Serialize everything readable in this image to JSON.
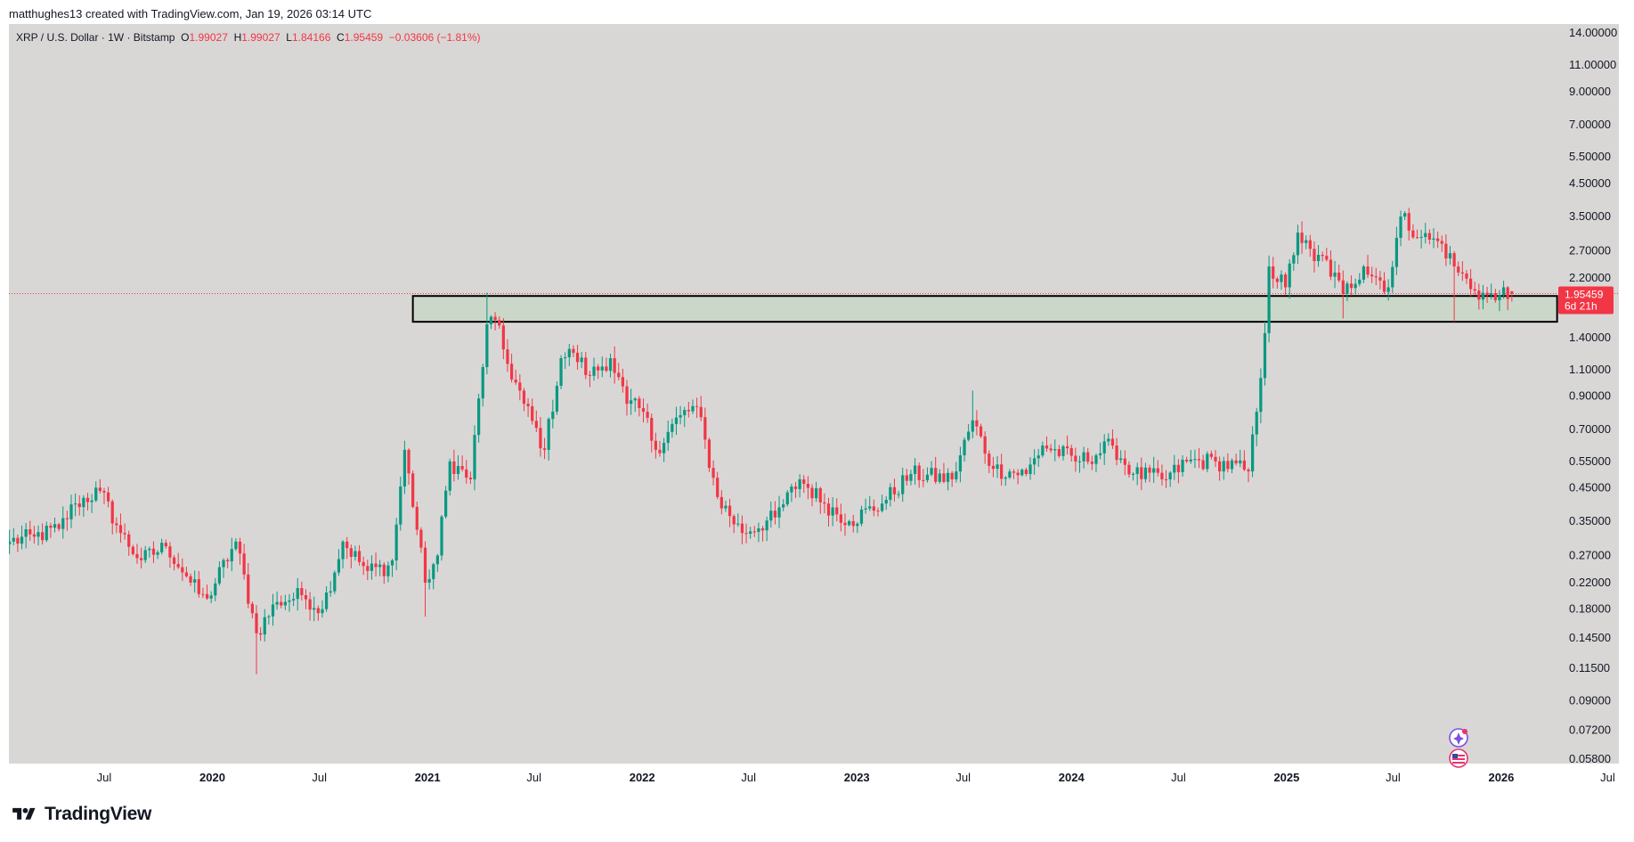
{
  "header": {
    "created_by": "matthughes13 created with TradingView.com, Jan 19, 2026 03:14 UTC"
  },
  "legend": {
    "symbol": "XRP / U.S. Dollar · 1W · Bitstamp",
    "o_label": "O",
    "o_value": "1.99027",
    "h_label": "H",
    "h_value": "1.99027",
    "l_label": "L",
    "l_value": "1.84166",
    "c_label": "C",
    "c_value": "1.95459",
    "change": "−0.03606 (−1.81%)"
  },
  "price_tag": {
    "price": "1.95459",
    "countdown": "6d 21h"
  },
  "brand": {
    "name": "TradingView"
  },
  "colors": {
    "up": "#089981",
    "down": "#f23645",
    "background": "#d9d7d6",
    "zone_fill": "#cbd7c8",
    "zone_stroke": "#000000"
  },
  "icons": [
    "tradingview-logo-icon",
    "sparkle-magic-icon",
    "us-flag-icon"
  ],
  "chart_data": {
    "type": "candlestick",
    "interval": "1W",
    "y_scale": "log",
    "ylim": [
      0.056,
      15
    ],
    "xlim": [
      "2019-01-20",
      "2026-07-20"
    ],
    "y_ticks": [
      "14.00000",
      "11.00000",
      "9.00000",
      "7.00000",
      "5.50000",
      "4.50000",
      "3.50000",
      "2.70000",
      "2.20000",
      "1.40000",
      "1.10000",
      "0.90000",
      "0.70000",
      "0.55000",
      "0.45000",
      "0.35000",
      "0.27000",
      "0.22000",
      "0.18000",
      "0.14500",
      "0.11500",
      "0.09000",
      "0.07200",
      "0.05800"
    ],
    "x_ticks": [
      {
        "label": "Jul",
        "date": "2019-07-01"
      },
      {
        "label": "2020",
        "date": "2020-01-01",
        "year": true
      },
      {
        "label": "Jul",
        "date": "2020-07-01"
      },
      {
        "label": "2021",
        "date": "2021-01-01",
        "year": true
      },
      {
        "label": "Jul",
        "date": "2021-07-01"
      },
      {
        "label": "2022",
        "date": "2022-01-01",
        "year": true
      },
      {
        "label": "Jul",
        "date": "2022-07-01"
      },
      {
        "label": "2023",
        "date": "2023-01-01",
        "year": true
      },
      {
        "label": "Jul",
        "date": "2023-07-01"
      },
      {
        "label": "2024",
        "date": "2024-01-01",
        "year": true
      },
      {
        "label": "Jul",
        "date": "2024-07-01"
      },
      {
        "label": "2025",
        "date": "2025-01-01",
        "year": true
      },
      {
        "label": "Jul",
        "date": "2025-07-01"
      },
      {
        "label": "2026",
        "date": "2026-01-01",
        "year": true
      },
      {
        "label": "Jul",
        "date": "2026-07-01"
      }
    ],
    "close_anchors": [
      [
        "2019-01-21",
        0.3
      ],
      [
        "2019-03-01",
        0.31
      ],
      [
        "2019-04-15",
        0.33
      ],
      [
        "2019-05-13",
        0.4
      ],
      [
        "2019-06-24",
        0.44
      ],
      [
        "2019-07-29",
        0.32
      ],
      [
        "2019-09-01",
        0.26
      ],
      [
        "2019-10-15",
        0.29
      ],
      [
        "2019-11-25",
        0.22
      ],
      [
        "2019-12-20",
        0.19
      ],
      [
        "2020-02-10",
        0.3
      ],
      [
        "2020-03-16",
        0.15
      ],
      [
        "2020-04-20",
        0.19
      ],
      [
        "2020-06-01",
        0.2
      ],
      [
        "2020-07-06",
        0.18
      ],
      [
        "2020-08-10",
        0.3
      ],
      [
        "2020-09-20",
        0.24
      ],
      [
        "2020-11-01",
        0.25
      ],
      [
        "2020-11-23",
        0.6
      ],
      [
        "2020-12-28",
        0.22
      ],
      [
        "2021-01-18",
        0.27
      ],
      [
        "2021-02-08",
        0.55
      ],
      [
        "2021-03-15",
        0.48
      ],
      [
        "2021-04-12",
        1.55
      ],
      [
        "2021-04-26",
        1.6
      ],
      [
        "2021-05-17",
        1.15
      ],
      [
        "2021-06-14",
        0.85
      ],
      [
        "2021-07-19",
        0.6
      ],
      [
        "2021-08-16",
        1.2
      ],
      [
        "2021-09-06",
        1.25
      ],
      [
        "2021-10-04",
        1.05
      ],
      [
        "2021-11-08",
        1.2
      ],
      [
        "2021-12-06",
        0.85
      ],
      [
        "2022-01-03",
        0.8
      ],
      [
        "2022-01-24",
        0.6
      ],
      [
        "2022-03-07",
        0.78
      ],
      [
        "2022-04-04",
        0.83
      ],
      [
        "2022-05-09",
        0.42
      ],
      [
        "2022-06-20",
        0.32
      ],
      [
        "2022-08-15",
        0.36
      ],
      [
        "2022-09-26",
        0.48
      ],
      [
        "2022-11-07",
        0.4
      ],
      [
        "2022-12-19",
        0.35
      ],
      [
        "2023-02-13",
        0.4
      ],
      [
        "2023-04-03",
        0.5
      ],
      [
        "2023-06-12",
        0.48
      ],
      [
        "2023-07-17",
        0.75
      ],
      [
        "2023-08-21",
        0.52
      ],
      [
        "2023-10-16",
        0.5
      ],
      [
        "2023-11-13",
        0.62
      ],
      [
        "2024-01-15",
        0.55
      ],
      [
        "2024-03-11",
        0.62
      ],
      [
        "2024-04-15",
        0.5
      ],
      [
        "2024-06-10",
        0.48
      ],
      [
        "2024-07-15",
        0.55
      ],
      [
        "2024-09-02",
        0.55
      ],
      [
        "2024-10-28",
        0.51
      ],
      [
        "2024-11-11",
        0.8
      ],
      [
        "2024-11-25",
        1.45
      ],
      [
        "2024-12-02",
        2.4
      ],
      [
        "2024-12-30",
        2.05
      ],
      [
        "2025-01-20",
        3.1
      ],
      [
        "2025-02-17",
        2.5
      ],
      [
        "2025-03-03",
        2.6
      ],
      [
        "2025-04-07",
        1.95
      ],
      [
        "2025-05-12",
        2.4
      ],
      [
        "2025-06-23",
        2.05
      ],
      [
        "2025-07-14",
        3.5
      ],
      [
        "2025-08-18",
        3.0
      ],
      [
        "2025-09-22",
        2.85
      ],
      [
        "2025-10-13",
        2.4
      ],
      [
        "2025-11-17",
        2.0
      ],
      [
        "2025-12-22",
        1.86
      ],
      [
        "2026-01-05",
        2.05
      ],
      [
        "2026-01-19",
        1.95459
      ]
    ],
    "zone": {
      "x_start": "2020-12-07",
      "x_end": "2026-04-06",
      "y_low": 1.58,
      "y_high": 1.92
    },
    "current_price": 1.95459,
    "last_bar": {
      "date": "2026-01-19",
      "open": 1.99027,
      "high": 1.99027,
      "low": 1.84166,
      "close": 1.95459
    },
    "wick_spikes": [
      {
        "date": "2021-04-12",
        "high": 1.97
      },
      {
        "date": "2025-04-07",
        "low": 1.62
      },
      {
        "date": "2025-10-13",
        "low": 1.58
      },
      {
        "date": "2023-07-17",
        "high": 0.94
      },
      {
        "date": "2020-03-16",
        "low": 0.11
      },
      {
        "date": "2020-12-28",
        "low": 0.17
      }
    ]
  }
}
